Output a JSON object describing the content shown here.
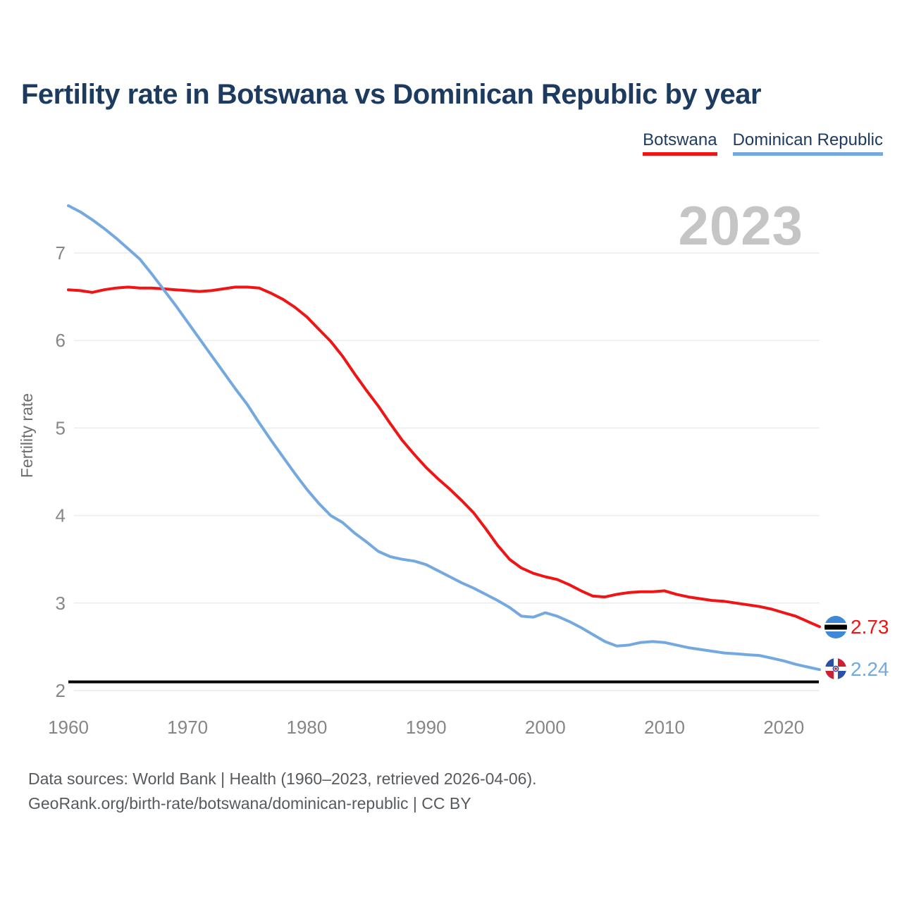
{
  "header": {
    "title": "Fertility rate in Botswana vs Dominican Republic by year"
  },
  "legend": [
    {
      "label": "Botswana",
      "color": "#f01414"
    },
    {
      "label": "Dominican Republic",
      "color": "#74a9e0"
    }
  ],
  "watermark": "2023",
  "chart_data": {
    "type": "line",
    "title": "Fertility rate in Botswana vs Dominican Republic by year",
    "xlabel": "",
    "ylabel": "Fertility rate",
    "x_ticks": [
      1960,
      1970,
      1980,
      1990,
      2000,
      2010,
      2020
    ],
    "y_ticks": [
      2,
      3,
      4,
      5,
      6,
      7
    ],
    "xlim": [
      1960,
      2023
    ],
    "ylim": [
      1.9,
      7.6
    ],
    "grid": "horizontal",
    "legend_position": "top-right",
    "x": [
      1960,
      1961,
      1962,
      1963,
      1964,
      1965,
      1966,
      1967,
      1968,
      1969,
      1970,
      1971,
      1972,
      1973,
      1974,
      1975,
      1976,
      1977,
      1978,
      1979,
      1980,
      1981,
      1982,
      1983,
      1984,
      1985,
      1986,
      1987,
      1988,
      1989,
      1990,
      1991,
      1992,
      1993,
      1994,
      1995,
      1996,
      1997,
      1998,
      1999,
      2000,
      2001,
      2002,
      2003,
      2004,
      2005,
      2006,
      2007,
      2008,
      2009,
      2010,
      2011,
      2012,
      2013,
      2014,
      2015,
      2016,
      2017,
      2018,
      2019,
      2020,
      2021,
      2022,
      2023
    ],
    "series": [
      {
        "name": "Botswana",
        "color": "#f01414",
        "end_label": "2.73",
        "end_value": 2.73,
        "values": [
          6.58,
          6.57,
          6.55,
          6.58,
          6.6,
          6.61,
          6.6,
          6.6,
          6.59,
          6.58,
          6.57,
          6.56,
          6.57,
          6.59,
          6.61,
          6.61,
          6.6,
          6.54,
          6.47,
          6.38,
          6.27,
          6.13,
          5.99,
          5.82,
          5.62,
          5.43,
          5.25,
          5.05,
          4.86,
          4.7,
          4.55,
          4.42,
          4.3,
          4.17,
          4.03,
          3.85,
          3.66,
          3.5,
          3.4,
          3.34,
          3.3,
          3.27,
          3.21,
          3.14,
          3.08,
          3.07,
          3.1,
          3.12,
          3.13,
          3.13,
          3.14,
          3.1,
          3.07,
          3.05,
          3.03,
          3.02,
          3.0,
          2.98,
          2.96,
          2.93,
          2.89,
          2.85,
          2.79,
          2.73
        ]
      },
      {
        "name": "Dominican Republic",
        "color": "#74a9e0",
        "end_label": "2.24",
        "end_value": 2.24,
        "values": [
          7.54,
          7.47,
          7.38,
          7.28,
          7.17,
          7.05,
          6.93,
          6.76,
          6.58,
          6.4,
          6.21,
          6.02,
          5.83,
          5.64,
          5.45,
          5.27,
          5.06,
          4.86,
          4.67,
          4.48,
          4.3,
          4.14,
          4.0,
          3.92,
          3.8,
          3.7,
          3.59,
          3.53,
          3.5,
          3.48,
          3.44,
          3.37,
          3.3,
          3.23,
          3.17,
          3.1,
          3.03,
          2.95,
          2.85,
          2.84,
          2.89,
          2.85,
          2.79,
          2.72,
          2.64,
          2.56,
          2.51,
          2.52,
          2.55,
          2.56,
          2.55,
          2.52,
          2.49,
          2.47,
          2.45,
          2.43,
          2.42,
          2.41,
          2.4,
          2.37,
          2.34,
          2.3,
          2.27,
          2.24
        ]
      }
    ],
    "reference_line": {
      "value": 2.1,
      "color": "#000000"
    }
  },
  "footer": {
    "line1": "Data sources: World Bank | Health (1960–2023, retrieved 2026-04-06).",
    "line2": "GeoRank.org/birth-rate/botswana/dominican-republic | CC BY"
  }
}
